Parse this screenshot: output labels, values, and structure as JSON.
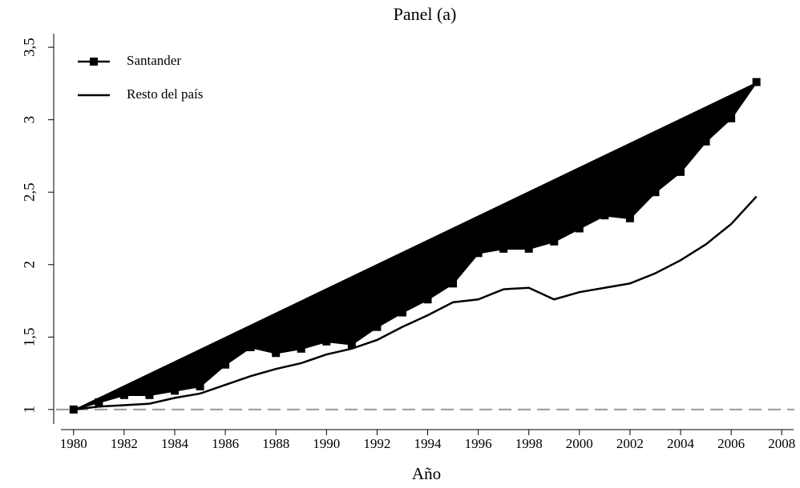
{
  "chart_data": {
    "type": "line",
    "title": "Panel (a)",
    "x_label": "Año",
    "x": [
      1980,
      1981,
      1982,
      1983,
      1984,
      1985,
      1986,
      1987,
      1988,
      1989,
      1990,
      1991,
      1992,
      1993,
      1994,
      1995,
      1996,
      1997,
      1998,
      1999,
      2000,
      2001,
      2002,
      2003,
      2004,
      2005,
      2006,
      2007
    ],
    "series": [
      {
        "name": "Santander",
        "color": "#000000",
        "marker": "square",
        "fill_to_chord": true,
        "values": [
          1.0,
          1.05,
          1.1,
          1.1,
          1.13,
          1.16,
          1.31,
          1.43,
          1.39,
          1.42,
          1.47,
          1.45,
          1.57,
          1.67,
          1.76,
          1.87,
          2.08,
          2.11,
          2.11,
          2.16,
          2.25,
          2.34,
          2.32,
          2.5,
          2.64,
          2.85,
          3.01,
          3.26
        ]
      },
      {
        "name": "Resto del país",
        "color": "#000000",
        "values": [
          1.0,
          1.02,
          1.03,
          1.04,
          1.08,
          1.11,
          1.17,
          1.23,
          1.28,
          1.32,
          1.38,
          1.42,
          1.48,
          1.57,
          1.65,
          1.74,
          1.76,
          1.83,
          1.84,
          1.76,
          1.81,
          1.84,
          1.87,
          1.94,
          2.03,
          2.14,
          2.28,
          2.47
        ]
      }
    ],
    "reference_line": 1,
    "xlim": [
      1979.5,
      2008.5
    ],
    "xticks": [
      1980,
      1982,
      1984,
      1986,
      1988,
      1990,
      1992,
      1994,
      1996,
      1998,
      2000,
      2002,
      2004,
      2006,
      2008
    ],
    "ylim": [
      0.9,
      3.6
    ],
    "yticks": [
      1,
      {
        "value": 1.5,
        "label": "1,5"
      },
      2,
      {
        "value": 2.5,
        "label": "2,5"
      },
      3,
      {
        "value": 3.5,
        "label": "3,5"
      }
    ],
    "legend": "upper-left"
  }
}
